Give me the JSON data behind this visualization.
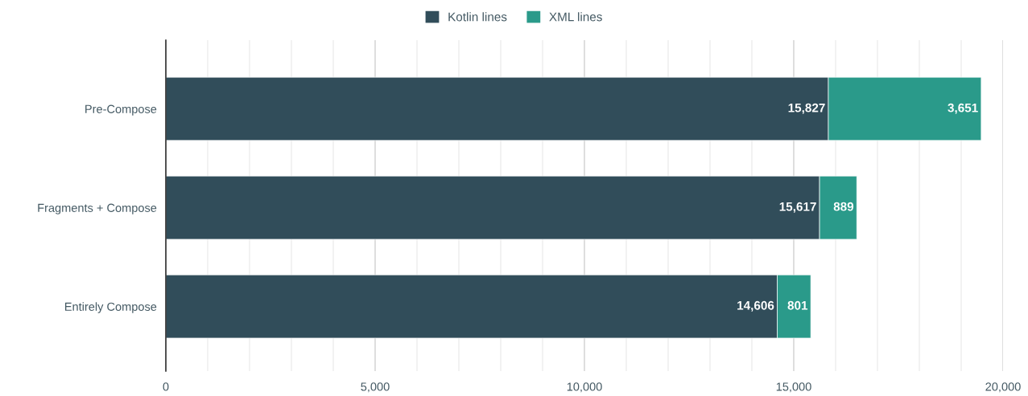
{
  "chart_data": {
    "type": "bar",
    "orientation": "horizontal",
    "stacked": true,
    "categories": [
      "Pre-Compose",
      "Fragments + Compose",
      "Entirely Compose"
    ],
    "series": [
      {
        "name": "Kotlin lines",
        "color": "#314d5a",
        "values": [
          15827,
          15617,
          14606
        ],
        "value_labels": [
          "15,827",
          "15,617",
          "14,606"
        ]
      },
      {
        "name": "XML lines",
        "color": "#2a9a8a",
        "values": [
          3651,
          889,
          801
        ],
        "value_labels": [
          "3,651",
          "889",
          "801"
        ]
      }
    ],
    "xlim": [
      0,
      20000
    ],
    "xticks": [
      0,
      {
        "value": 1000,
        "label": null
      },
      {
        "value": 2000,
        "label": null
      },
      {
        "value": 3000,
        "label": null
      },
      {
        "value": 4000,
        "label": null
      },
      {
        "value": 5000,
        "label": "5,000"
      },
      {
        "value": 6000,
        "label": null
      },
      {
        "value": 7000,
        "label": null
      },
      {
        "value": 8000,
        "label": null
      },
      {
        "value": 9000,
        "label": null
      },
      {
        "value": 10000,
        "label": "10,000"
      },
      {
        "value": 11000,
        "label": null
      },
      {
        "value": 12000,
        "label": null
      },
      {
        "value": 13000,
        "label": null
      },
      {
        "value": 14000,
        "label": null
      },
      {
        "value": 15000,
        "label": "15,000"
      },
      {
        "value": 16000,
        "label": null
      },
      {
        "value": 17000,
        "label": null
      },
      {
        "value": 18000,
        "label": null
      },
      {
        "value": 19000,
        "label": null
      },
      {
        "value": 20000,
        "label": "20,000"
      }
    ],
    "grid": "x",
    "legend": "top"
  }
}
